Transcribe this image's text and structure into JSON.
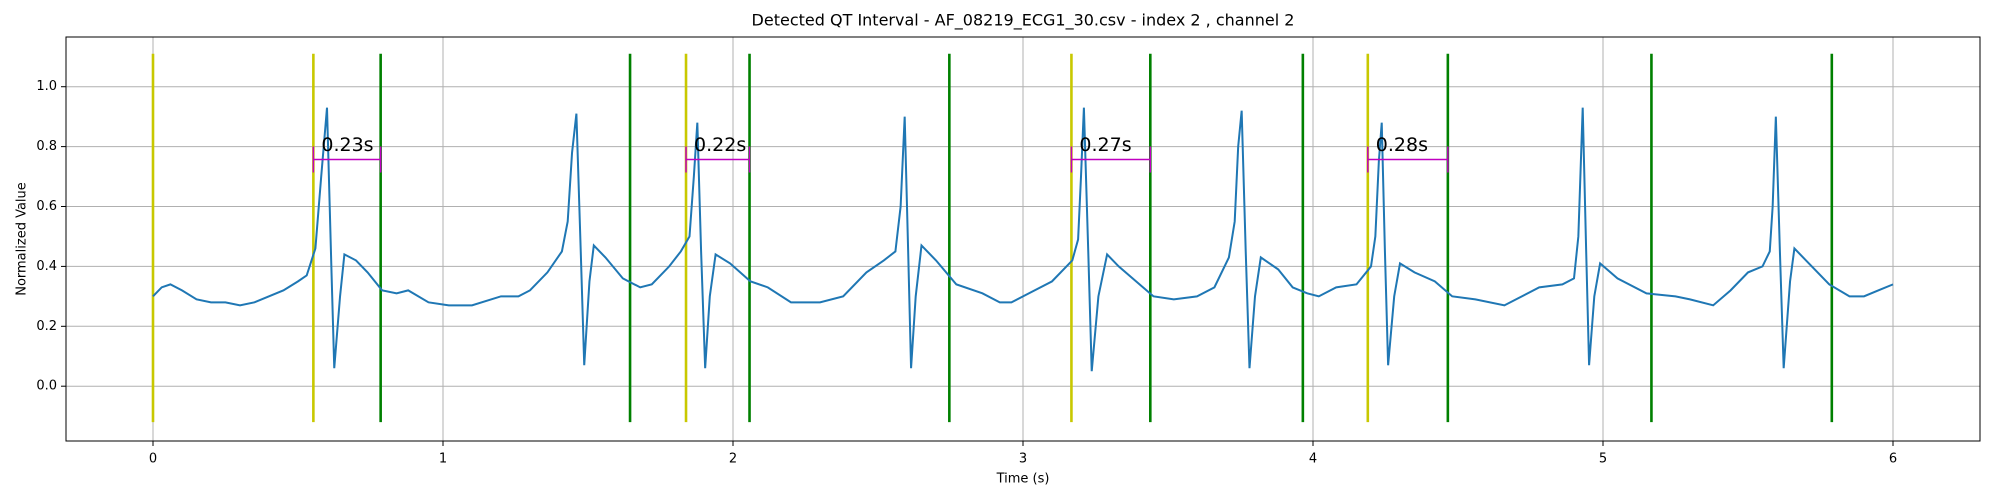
{
  "chart_data": {
    "type": "line",
    "title": "Detected QT Interval - AF_08219_ECG1_30.csv - index 2 , channel 2",
    "x_label": "Time (s)",
    "y_label": "Normalized Value",
    "color": "#1f77b4",
    "x": [
      0,
      0.03,
      0.06,
      0.1,
      0.15,
      0.2,
      0.25,
      0.3,
      0.35,
      0.4,
      0.45,
      0.5,
      0.53,
      0.56,
      0.58,
      0.6,
      0.615,
      0.625,
      0.645,
      0.66,
      0.7,
      0.74,
      0.79,
      0.84,
      0.88,
      0.95,
      1.02,
      1.1,
      1.2,
      1.26,
      1.3,
      1.36,
      1.41,
      1.43,
      1.445,
      1.46,
      1.475,
      1.487,
      1.505,
      1.52,
      1.56,
      1.62,
      1.68,
      1.72,
      1.78,
      1.82,
      1.85,
      1.865,
      1.877,
      1.89,
      1.904,
      1.92,
      1.94,
      1.99,
      2.06,
      2.12,
      2.2,
      2.3,
      2.38,
      2.46,
      2.52,
      2.56,
      2.578,
      2.592,
      2.604,
      2.614,
      2.63,
      2.65,
      2.7,
      2.77,
      2.86,
      2.92,
      2.96,
      3.02,
      3.1,
      3.17,
      3.19,
      3.2,
      3.21,
      3.225,
      3.237,
      3.26,
      3.29,
      3.33,
      3.39,
      3.45,
      3.52,
      3.6,
      3.66,
      3.71,
      3.73,
      3.742,
      3.754,
      3.768,
      3.781,
      3.8,
      3.82,
      3.88,
      3.93,
      3.98,
      4.02,
      4.08,
      4.15,
      4.2,
      4.215,
      4.227,
      4.237,
      4.248,
      4.259,
      4.28,
      4.3,
      4.35,
      4.42,
      4.48,
      4.56,
      4.66,
      4.7,
      4.78,
      4.86,
      4.9,
      4.915,
      4.93,
      4.942,
      4.952,
      4.97,
      4.99,
      5.05,
      5.15,
      5.25,
      5.3,
      5.38,
      5.44,
      5.5,
      5.55,
      5.575,
      5.585,
      5.596,
      5.61,
      5.623,
      5.645,
      5.66,
      5.7,
      5.78,
      5.85,
      5.9,
      5.95,
      6.0
    ],
    "values": [
      0.3,
      0.33,
      0.34,
      0.32,
      0.29,
      0.28,
      0.28,
      0.27,
      0.28,
      0.3,
      0.32,
      0.35,
      0.37,
      0.46,
      0.7,
      0.93,
      0.4,
      0.06,
      0.3,
      0.44,
      0.42,
      0.38,
      0.32,
      0.31,
      0.32,
      0.28,
      0.27,
      0.27,
      0.3,
      0.3,
      0.32,
      0.38,
      0.45,
      0.55,
      0.78,
      0.91,
      0.45,
      0.07,
      0.35,
      0.47,
      0.43,
      0.36,
      0.33,
      0.34,
      0.4,
      0.45,
      0.5,
      0.7,
      0.88,
      0.45,
      0.06,
      0.3,
      0.44,
      0.41,
      0.35,
      0.33,
      0.28,
      0.28,
      0.3,
      0.38,
      0.42,
      0.45,
      0.6,
      0.9,
      0.45,
      0.06,
      0.3,
      0.47,
      0.42,
      0.34,
      0.31,
      0.28,
      0.28,
      0.31,
      0.35,
      0.42,
      0.49,
      0.7,
      0.93,
      0.45,
      0.05,
      0.3,
      0.44,
      0.4,
      0.35,
      0.3,
      0.29,
      0.3,
      0.33,
      0.43,
      0.55,
      0.8,
      0.92,
      0.45,
      0.06,
      0.3,
      0.43,
      0.39,
      0.33,
      0.31,
      0.3,
      0.33,
      0.34,
      0.4,
      0.5,
      0.75,
      0.88,
      0.45,
      0.07,
      0.3,
      0.41,
      0.38,
      0.35,
      0.3,
      0.29,
      0.27,
      0.29,
      0.33,
      0.34,
      0.36,
      0.5,
      0.93,
      0.45,
      0.07,
      0.3,
      0.41,
      0.36,
      0.31,
      0.3,
      0.29,
      0.27,
      0.32,
      0.38,
      0.4,
      0.45,
      0.6,
      0.9,
      0.45,
      0.06,
      0.35,
      0.46,
      0.42,
      0.34,
      0.3,
      0.3,
      0.32,
      0.34
    ],
    "xlim": [
      -0.3,
      6.3
    ],
    "ylim": [
      -0.183,
      1.166
    ],
    "xticks": [
      0,
      1,
      2,
      3,
      4,
      5,
      6
    ],
    "yticks": [
      {
        "value": 0,
        "label": "0.0"
      },
      0.2,
      0.4,
      0.6,
      0.8,
      {
        "value": 1,
        "label": "1.0"
      }
    ],
    "grid": true,
    "vline_span": [
      -0.12,
      1.11
    ],
    "vlines": [
      {
        "color": "#c8c800",
        "x": [
          0,
          0.553,
          1.838,
          3.167,
          4.189
        ]
      },
      {
        "color": "#008000",
        "x": [
          0.785,
          1.645,
          2.057,
          2.746,
          3.439,
          3.965,
          4.465,
          5.167,
          5.789
        ]
      }
    ],
    "annotation_color": "#c000c0",
    "annotations": [
      {
        "text": "0.23s",
        "start": 0.553,
        "end": 0.785,
        "y": 0.757
      },
      {
        "text": "0.22s",
        "start": 1.838,
        "end": 2.057,
        "y": 0.757
      },
      {
        "text": "0.27s",
        "start": 3.167,
        "end": 3.439,
        "y": 0.757
      },
      {
        "text": "0.28s",
        "start": 4.189,
        "end": 4.465,
        "y": 0.757
      }
    ]
  }
}
